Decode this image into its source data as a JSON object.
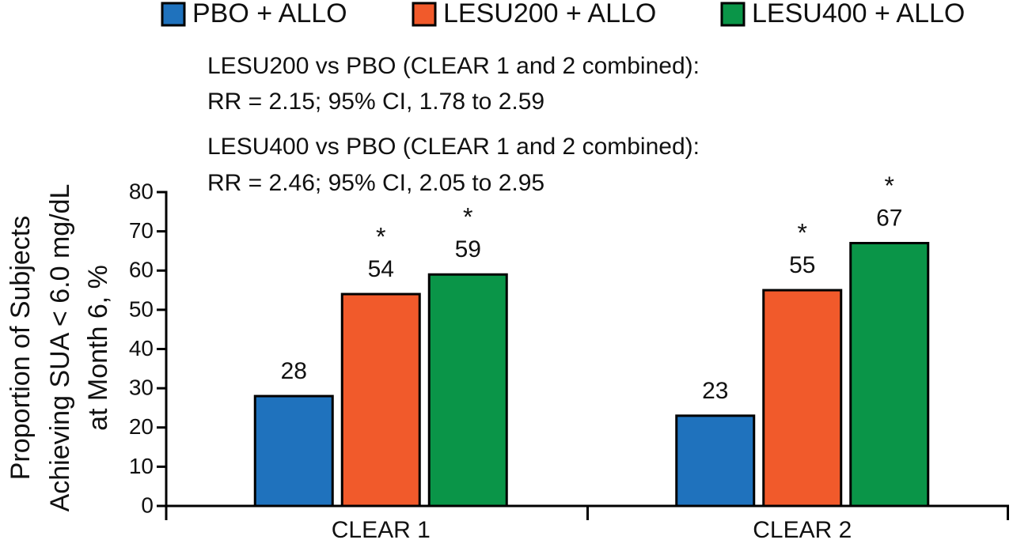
{
  "chart_data": {
    "type": "bar",
    "categories": [
      "CLEAR 1",
      "CLEAR 2"
    ],
    "series": [
      {
        "name": "PBO + ALLO",
        "color": "#1f72bd",
        "values": [
          28,
          23
        ]
      },
      {
        "name": "LESU200 + ALLO",
        "color": "#f15a2b",
        "values": [
          54,
          55
        ],
        "annotations": [
          "*",
          "*"
        ]
      },
      {
        "name": "LESU400 + ALLO",
        "color": "#0a9548",
        "values": [
          59,
          67
        ],
        "annotations": [
          "*",
          "*"
        ]
      }
    ],
    "ylabel": [
      "Proportion of Subjects",
      "Achieving SUA < 6.0 mg/dL",
      "at Month 6, %"
    ],
    "notes": [
      "LESU200 vs PBO (CLEAR 1 and 2 combined):",
      "RR = 2.15; 95% CI, 1.78 to 2.59",
      "LESU400 vs PBO (CLEAR 1 and 2 combined):",
      "RR = 2.46; 95% CI, 2.05 to 2.95"
    ],
    "ylim": [
      0,
      80
    ],
    "yticks": [
      0,
      10,
      20,
      30,
      40,
      50,
      60,
      70,
      80
    ],
    "legend": "top",
    "grid": false
  }
}
